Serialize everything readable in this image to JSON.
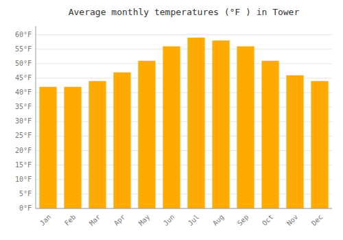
{
  "chart_data": {
    "type": "bar",
    "title": "Average monthly temperatures (°F ) in Tower",
    "categories": [
      "Jan",
      "Feb",
      "Mar",
      "Apr",
      "May",
      "Jun",
      "Jul",
      "Aug",
      "Sep",
      "Oct",
      "Nov",
      "Dec"
    ],
    "values": [
      42,
      42,
      44,
      47,
      51,
      56,
      59,
      58,
      56,
      51,
      46,
      44
    ],
    "color": "#FFAA00",
    "ylim": [
      0,
      63
    ],
    "yticks": [
      {
        "value": 0,
        "label": "0°F"
      },
      {
        "value": 5,
        "label": "5°F"
      },
      {
        "value": 10,
        "label": "10°F"
      },
      {
        "value": 15,
        "label": "15°F"
      },
      {
        "value": 20,
        "label": "20°F"
      },
      {
        "value": 25,
        "label": "25°F"
      },
      {
        "value": 30,
        "label": "30°F"
      },
      {
        "value": 35,
        "label": "35°F"
      },
      {
        "value": 40,
        "label": "40°F"
      },
      {
        "value": 45,
        "label": "45°F"
      },
      {
        "value": 50,
        "label": "50°F"
      },
      {
        "value": 55,
        "label": "55°F"
      },
      {
        "value": 60,
        "label": "60°F"
      }
    ],
    "grid": true
  }
}
